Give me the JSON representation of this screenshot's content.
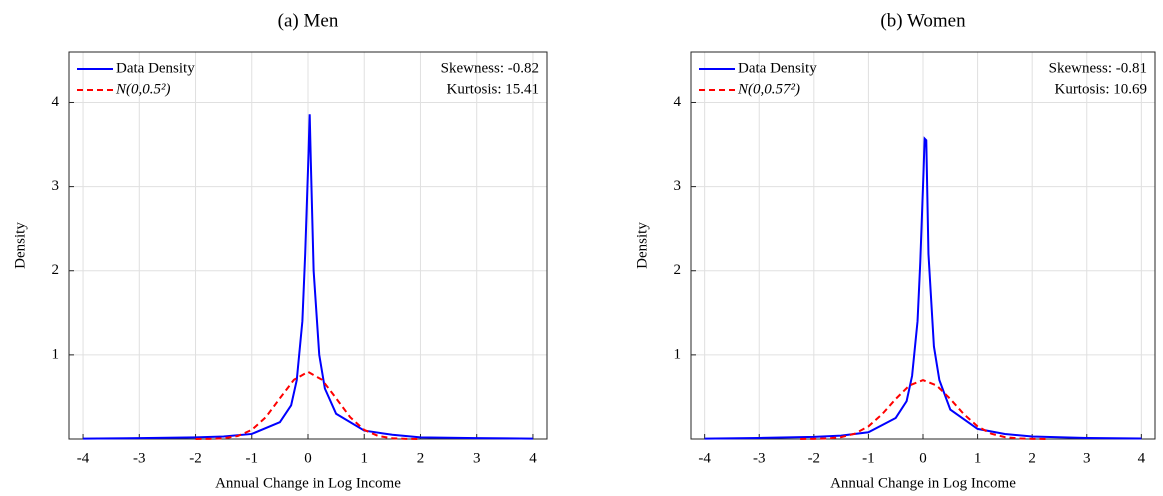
{
  "chart_data": [
    {
      "type": "line",
      "title": "(a) Men",
      "xlabel": "Annual Change in Log Income",
      "ylabel": "Density",
      "xlim": [
        -4.25,
        4.25
      ],
      "ylim": [
        0,
        4.6
      ],
      "xticks": [
        -4,
        -3,
        -2,
        -1,
        0,
        1,
        2,
        3,
        4
      ],
      "yticks": [
        1,
        2,
        3,
        4
      ],
      "grid": true,
      "legend": "upper left",
      "annotations": [
        "Skewness: -0.82",
        "Kurtosis: 15.41"
      ],
      "series": [
        {
          "name": "Data Density",
          "color": "#0000ff",
          "style": "solid",
          "x": [
            -4,
            -3,
            -2,
            -1.5,
            -1,
            -0.5,
            -0.3,
            -0.2,
            -0.1,
            -0.05,
            0,
            0.03,
            0.05,
            0.1,
            0.2,
            0.3,
            0.5,
            1,
            1.5,
            2,
            3,
            4
          ],
          "values": [
            0.005,
            0.01,
            0.02,
            0.03,
            0.06,
            0.2,
            0.4,
            0.7,
            1.4,
            2.2,
            3.2,
            3.86,
            3.3,
            2.0,
            1.0,
            0.6,
            0.3,
            0.1,
            0.05,
            0.02,
            0.01,
            0.005
          ]
        },
        {
          "name": "N(0,0.5²)",
          "color": "#ff0000",
          "style": "dashed",
          "x": [
            -2,
            -1.75,
            -1.5,
            -1.25,
            -1,
            -0.75,
            -0.5,
            -0.25,
            0,
            0.25,
            0.5,
            0.75,
            1,
            1.25,
            1.5,
            1.75,
            2
          ],
          "values": [
            0.0003,
            0.0017,
            0.0089,
            0.035,
            0.108,
            0.259,
            0.484,
            0.704,
            0.798,
            0.704,
            0.484,
            0.259,
            0.108,
            0.035,
            0.0089,
            0.0017,
            0.0003
          ]
        }
      ]
    },
    {
      "type": "line",
      "title": "(b) Women",
      "xlabel": "Annual Change in Log Income",
      "ylabel": "Density",
      "xlim": [
        -4.25,
        4.25
      ],
      "ylim": [
        0,
        4.6
      ],
      "xticks": [
        -4,
        -3,
        -2,
        -1,
        0,
        1,
        2,
        3,
        4
      ],
      "yticks": [
        1,
        2,
        3,
        4
      ],
      "grid": true,
      "legend": "upper left",
      "annotations": [
        "Skewness: -0.81",
        "Kurtosis: 10.69"
      ],
      "series": [
        {
          "name": "Data Density",
          "color": "#0000ff",
          "style": "solid",
          "x": [
            -4,
            -3,
            -2,
            -1.5,
            -1,
            -0.5,
            -0.3,
            -0.2,
            -0.1,
            -0.05,
            0,
            0.03,
            0.06,
            0.1,
            0.2,
            0.3,
            0.5,
            1,
            1.5,
            2,
            3,
            4
          ],
          "values": [
            0.005,
            0.012,
            0.025,
            0.04,
            0.08,
            0.25,
            0.45,
            0.75,
            1.4,
            2.1,
            3.0,
            3.57,
            3.55,
            2.2,
            1.1,
            0.7,
            0.35,
            0.12,
            0.06,
            0.03,
            0.012,
            0.006
          ]
        },
        {
          "name": "N(0,0.57²)",
          "color": "#ff0000",
          "style": "dashed",
          "x": [
            -2.25,
            -2,
            -1.75,
            -1.5,
            -1.25,
            -1,
            -0.75,
            -0.5,
            -0.25,
            0,
            0.25,
            0.5,
            0.75,
            1,
            1.25,
            1.5,
            1.75,
            2,
            2.25
          ],
          "values": [
            0.0003,
            0.0015,
            0.0063,
            0.022,
            0.063,
            0.15,
            0.294,
            0.476,
            0.636,
            0.7,
            0.636,
            0.476,
            0.294,
            0.15,
            0.063,
            0.022,
            0.0063,
            0.0015,
            0.0003
          ]
        }
      ]
    }
  ]
}
